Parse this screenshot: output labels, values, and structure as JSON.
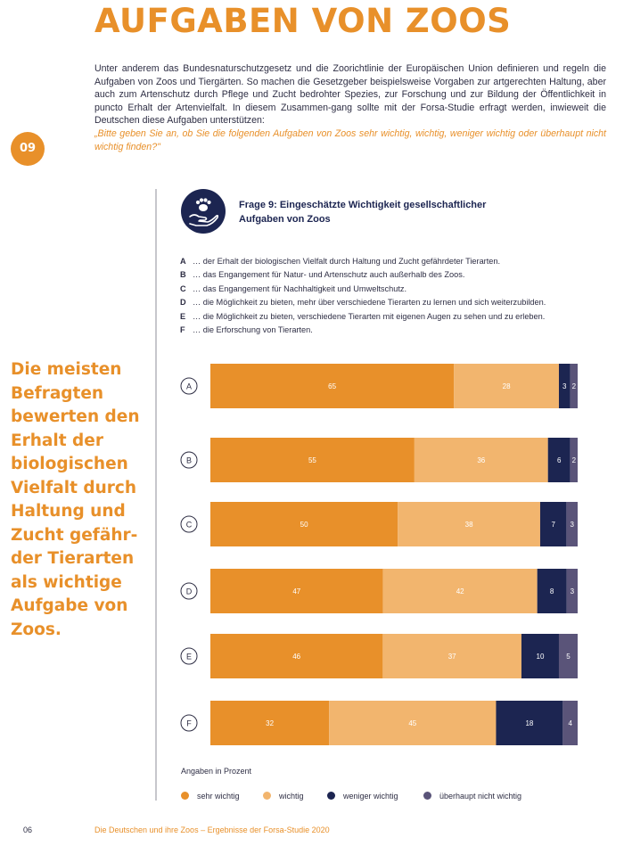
{
  "page": {
    "title": "AUFGABEN VON ZOOS",
    "intro": "Unter anderem das Bundesnaturschutzgesetz und die Zoorichtlinie der Europäischen Union definieren und regeln die Aufgaben von Zoos und Tiergärten. So machen die Gesetzgeber beispielsweise Vorgaben zur artgerechten Haltung, aber auch zum Artenschutz durch Pflege und Zucht bedrohter Spezies, zur Forschung und zur Bildung der Öffentlichkeit in puncto Erhalt der Artenvielfalt. In diesem Zusammen-gang sollte mit der Forsa-Studie erfragt werden, inwieweit die Deutschen diese Aufgaben unterstützen:",
    "question": "„Bitte geben Sie an, ob Sie die folgenden Aufgaben von Zoos sehr wichtig, wichtig, weniger wichtig oder überhaupt nicht wichtig finden?\"",
    "badge": "09",
    "side_quote": "Die meisten Befragten bewerten den Erhalt der biologischen Vielfalt durch Haltung und Zucht gefähr-der Tierarten als wichtige Aufgabe von Zoos.",
    "footer_page": "06",
    "footer_text": "Die Deutschen und ihre Zoos – Ergebnisse der Forsa-Studie 2020",
    "icon": "paw-hand-icon"
  },
  "chart_data": {
    "type": "bar",
    "orientation": "horizontal",
    "stacked": true,
    "title": "Frage 9: Eingeschätzte Wichtigkeit gesellschaftlicher Aufgaben von Zoos",
    "note": "Angaben in Prozent",
    "categories": [
      "A",
      "B",
      "C",
      "D",
      "E",
      "F"
    ],
    "category_descriptions": [
      "… der Erhalt der biologischen Vielfalt durch Haltung und Zucht gefährdeter Tierarten.",
      "… das Engangement für Natur- und Artenschutz auch außerhalb des Zoos.",
      "… das Engangement für Nachhaltigkeit und Umweltschutz.",
      "… die Möglichkeit zu bieten, mehr über verschiedene Tierarten zu lernen und sich weiterzubilden.",
      "… die Möglichkeit zu bieten, verschiedene Tierarten mit eigenen Augen zu sehen und zu erleben.",
      "… die Erforschung von Tierarten."
    ],
    "series": [
      {
        "name": "sehr wichtig",
        "color": "#e8902a",
        "values": [
          65,
          55,
          50,
          47,
          46,
          32
        ]
      },
      {
        "name": "wichtig",
        "color": "#f2b56e",
        "values": [
          28,
          36,
          38,
          42,
          37,
          45
        ]
      },
      {
        "name": "weniger wichtig",
        "color": "#1c2551",
        "values": [
          3,
          6,
          7,
          8,
          10,
          18
        ]
      },
      {
        "name": "überhaupt nicht wichtig",
        "color": "#5a5479",
        "values": [
          2,
          2,
          3,
          3,
          5,
          4
        ]
      }
    ],
    "legend_position": "bottom",
    "grid": false
  }
}
